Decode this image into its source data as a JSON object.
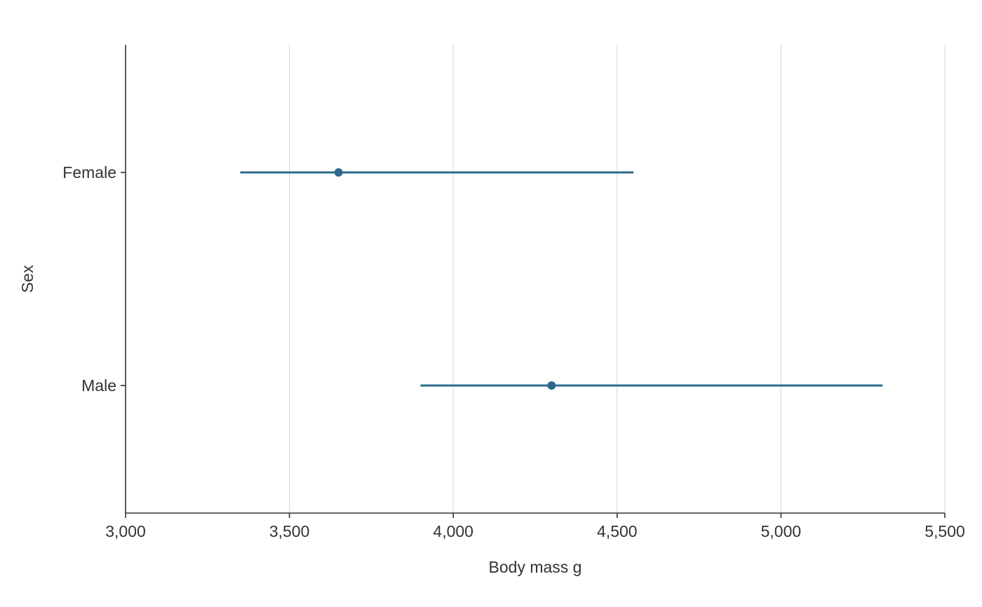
{
  "chart_data": {
    "type": "pointrange",
    "xlabel": "Body mass g",
    "ylabel": "Sex",
    "xlim": [
      3000,
      5500
    ],
    "x_ticks": [
      3000,
      3500,
      4000,
      4500,
      5000,
      5500
    ],
    "x_tick_labels": [
      "3,000",
      "3,500",
      "4,000",
      "4,500",
      "5,000",
      "5,500"
    ],
    "categories": [
      "Female",
      "Male"
    ],
    "points": [
      {
        "category": "Female",
        "value": 3650,
        "low": 3350,
        "high": 4550
      },
      {
        "category": "Male",
        "value": 4300,
        "high": 5310,
        "low": 3900
      }
    ],
    "color": "#2e6a8e",
    "grid": "vertical major",
    "legend": "none"
  }
}
